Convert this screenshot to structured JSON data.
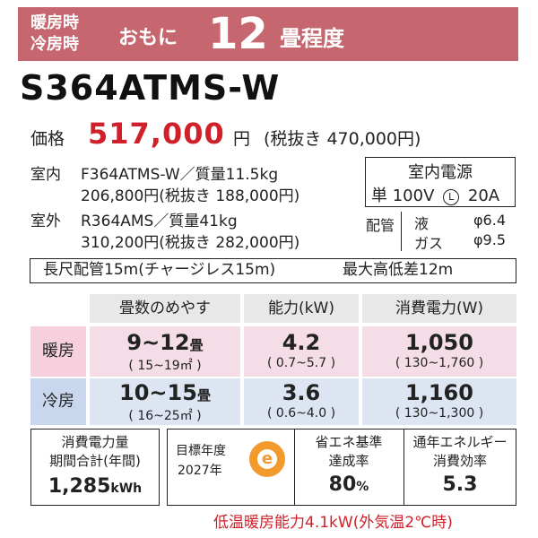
{
  "banner": {
    "mode_heating": "暖房時",
    "mode_cooling": "冷房時",
    "approx": "おもに",
    "size": "12",
    "size_unit": "畳程度"
  },
  "model": "S364ATMS-W",
  "price": {
    "label": "価格",
    "value": "517,000",
    "yen": "円",
    "excl_tax": "(税抜き 470,000円)"
  },
  "units": {
    "indoor_label": "室内",
    "indoor_spec": "F364ATMS-W／質量11.5kg",
    "indoor_price": "206,800円(税抜き 188,000円)",
    "outdoor_label": "室外",
    "outdoor_spec": "R364AMS／質量41kg",
    "outdoor_price": "310,200円(税抜き 282,000円)"
  },
  "power_supply": {
    "title": "室内電源",
    "spec": "単 100V",
    "plug_icon": "L",
    "amp": "20A"
  },
  "piping": {
    "label": "配管",
    "liquid_label": "液",
    "liquid_value": "φ6.4",
    "gas_label": "ガス",
    "gas_value": "φ9.5"
  },
  "long_piping": {
    "left": "長尺配管15m(チャージレス15m)",
    "right": "最大高低差12m"
  },
  "table": {
    "headers": [
      "畳数のめやす",
      "能力(kW)",
      "消費電力(W)"
    ],
    "rows": [
      {
        "label": "暖房",
        "area": "9~12",
        "area_unit": "畳",
        "area_range": "( 15~19㎡ )",
        "capacity": "4.2",
        "capacity_range": "( 0.7~5.7 )",
        "power": "1,050",
        "power_range": "( 130~1,760 )"
      },
      {
        "label": "冷房",
        "area": "10~15",
        "area_unit": "畳",
        "area_range": "( 16~25㎡ )",
        "capacity": "3.6",
        "capacity_range": "( 0.6~4.0 )",
        "power": "1,160",
        "power_range": "( 130~1,300 )"
      }
    ]
  },
  "annual": {
    "title1": "消費電力量",
    "title2": "期間合計(年間)",
    "value": "1,285",
    "unit": "kWh"
  },
  "efficiency": {
    "target_year_label": "目標年度",
    "target_year": "2027年",
    "logo_letter": "e",
    "standard_title1": "省エネ基準",
    "standard_title2": "達成率",
    "standard_value": "80",
    "standard_unit": "%",
    "apf_title1": "通年エネルギー",
    "apf_title2": "消費効率",
    "apf_value": "5.3"
  },
  "footnote": "低温暖房能力4.1kW(外気温2℃時)",
  "colors": {
    "banner": "#c6666f",
    "price": "#d0202a",
    "heating_bg": "#f4dde6",
    "cooling_bg": "#dde5f2",
    "heating_label": "#f6d0dd",
    "cooling_label": "#c9d7ee",
    "logo": "#f29a2e"
  }
}
